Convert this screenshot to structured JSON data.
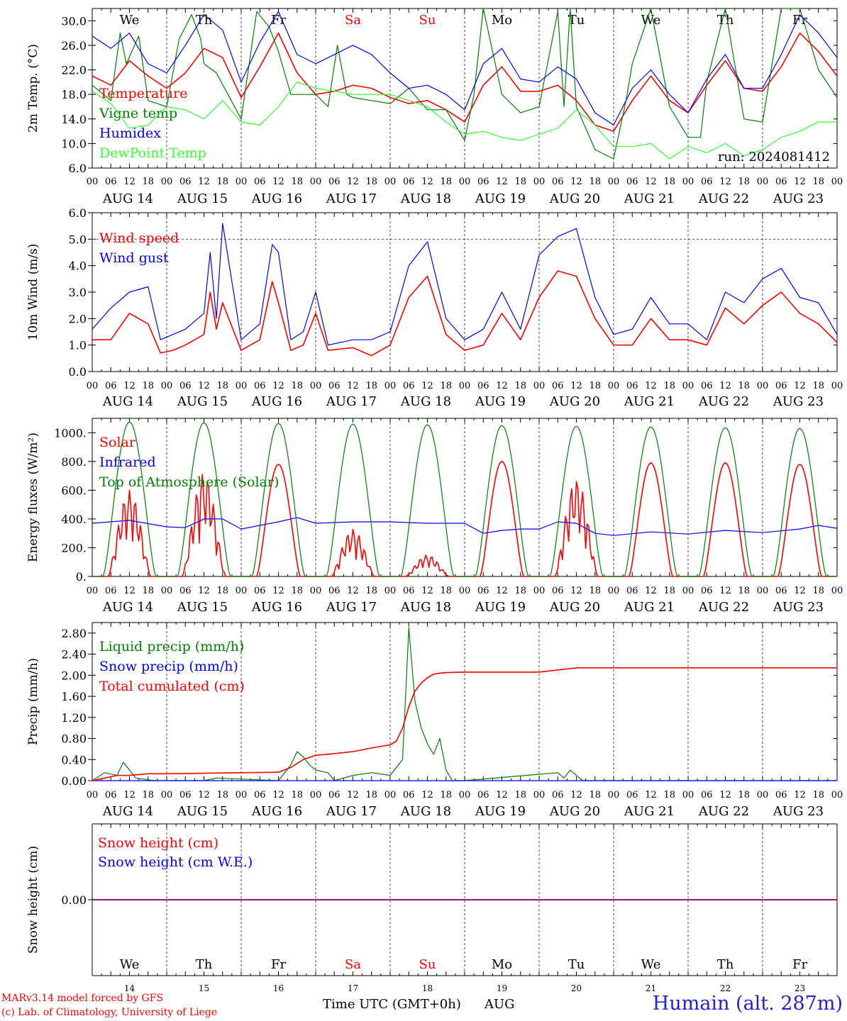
{
  "chart_data": [
    {
      "type": "line",
      "ylabel": "2m Temp. (°C)",
      "ylim": [
        6,
        32
      ],
      "yticks": [
        "6.0",
        "10.0",
        "14.0",
        "18.0",
        "22.0",
        "26.0",
        "30.0"
      ],
      "ytick_values": [
        6,
        10,
        14,
        18,
        22,
        26,
        30
      ],
      "x_ticks": [
        "00",
        "06",
        "12",
        "18"
      ],
      "dates": [
        "AUG 14",
        "AUG 15",
        "AUG 16",
        "AUG 17",
        "AUG 18",
        "AUG 19",
        "AUG 20",
        "AUG 21",
        "AUG 22",
        "AUG 23"
      ],
      "weekdays": [
        "We",
        "Th",
        "Fr",
        "Sa",
        "Su",
        "Mo",
        "Tu",
        "We",
        "Th",
        "Fr"
      ],
      "weekend_days": [
        3,
        4
      ],
      "annotation": "run: 2024081412",
      "series": [
        {
          "name": "Temperature",
          "color": "#ff0000",
          "x": [
            0,
            6,
            12,
            18,
            24,
            30,
            36,
            42,
            48,
            54,
            60,
            66,
            72,
            78,
            84,
            90,
            96,
            102,
            108,
            114,
            120,
            126,
            132,
            138,
            144,
            150,
            156,
            162,
            168,
            174,
            180,
            186,
            192,
            198,
            204,
            210,
            216,
            222,
            228,
            234,
            240
          ],
          "values": [
            21.0,
            19.5,
            23.5,
            21.0,
            19.0,
            21.5,
            25.5,
            24.0,
            17.5,
            22.5,
            28.0,
            21.5,
            18.0,
            18.5,
            19.5,
            19.0,
            17.5,
            16.5,
            17.0,
            15.5,
            13.5,
            19.5,
            22.5,
            18.5,
            18.5,
            19.5,
            17.0,
            13.0,
            12.0,
            17.0,
            21.0,
            17.0,
            15.0,
            19.5,
            23.5,
            19.0,
            18.5,
            22.5,
            28.0,
            25.0,
            21.0
          ]
        },
        {
          "name": "Vigne temp",
          "color": "#008000",
          "x": [
            0,
            6,
            9,
            11,
            15,
            18,
            24,
            28,
            32,
            35,
            36,
            40,
            48,
            53,
            57,
            60,
            64,
            72,
            76,
            79,
            82,
            84,
            90,
            96,
            102,
            108,
            114,
            120,
            123,
            126,
            132,
            138,
            144,
            150,
            152,
            154,
            156,
            162,
            168,
            172,
            174,
            180,
            186,
            192,
            196,
            198,
            204,
            210,
            216,
            222,
            228,
            234,
            240
          ],
          "values": [
            19.5,
            17.0,
            28.0,
            23.0,
            27.5,
            17.0,
            16.0,
            27.0,
            31.0,
            27.0,
            23.0,
            21.5,
            14.0,
            31.5,
            29.0,
            25.0,
            18.0,
            18.0,
            16.0,
            26.0,
            18.0,
            17.5,
            17.0,
            16.5,
            19.0,
            15.5,
            15.5,
            10.5,
            18.0,
            32.0,
            18.0,
            15.0,
            16.0,
            31.5,
            16.0,
            32.0,
            16.0,
            9.0,
            7.5,
            17.0,
            23.0,
            32.0,
            16.0,
            11.0,
            11.0,
            20.0,
            32.0,
            14.0,
            13.5,
            32.0,
            32.0,
            22.0,
            17.5
          ]
        },
        {
          "name": "Humidex",
          "color": "#0000ff",
          "x": [
            0,
            6,
            12,
            18,
            24,
            30,
            36,
            42,
            48,
            54,
            60,
            66,
            72,
            78,
            84,
            90,
            96,
            102,
            108,
            114,
            120,
            126,
            132,
            138,
            144,
            150,
            156,
            162,
            168,
            174,
            180,
            186,
            192,
            198,
            204,
            210,
            216,
            222,
            228,
            234,
            240
          ],
          "values": [
            27.5,
            25.5,
            28.0,
            23.0,
            21.5,
            26.0,
            31.0,
            28.5,
            20.0,
            26.5,
            31.5,
            24.5,
            23.0,
            24.5,
            26.0,
            24.5,
            21.5,
            19.0,
            19.5,
            18.0,
            15.5,
            23.0,
            25.5,
            20.5,
            20.0,
            22.5,
            20.5,
            15.0,
            13.0,
            19.0,
            22.0,
            18.0,
            15.0,
            20.5,
            24.5,
            19.0,
            19.0,
            24.5,
            31.0,
            28.0,
            24.0
          ]
        },
        {
          "name": "DewPoint Temp",
          "color": "#33ff33",
          "x": [
            0,
            6,
            12,
            18,
            24,
            30,
            36,
            42,
            48,
            54,
            60,
            66,
            72,
            78,
            84,
            90,
            96,
            102,
            108,
            114,
            120,
            126,
            132,
            138,
            144,
            150,
            156,
            162,
            168,
            174,
            180,
            186,
            192,
            198,
            204,
            210,
            216,
            222,
            228,
            234,
            240
          ],
          "values": [
            18.5,
            16.5,
            12.5,
            13.0,
            16.0,
            15.5,
            14.0,
            17.0,
            13.5,
            13.0,
            16.0,
            20.0,
            19.0,
            18.5,
            18.0,
            18.0,
            18.0,
            17.0,
            16.0,
            13.5,
            11.5,
            12.0,
            11.0,
            10.5,
            11.5,
            12.5,
            15.5,
            13.0,
            9.5,
            9.5,
            10.0,
            7.5,
            9.5,
            8.5,
            10.0,
            8.0,
            9.0,
            11.0,
            12.0,
            13.5,
            13.5
          ]
        }
      ]
    },
    {
      "type": "line",
      "ylabel": "10m Wind (m/s)",
      "ylim": [
        0,
        6
      ],
      "yticks": [
        "0.0",
        "1.0",
        "2.0",
        "3.0",
        "4.0",
        "5.0",
        "6.0"
      ],
      "ytick_values": [
        0,
        1,
        2,
        3,
        4,
        5,
        6
      ],
      "reference_line": 5.0,
      "x_ticks": [
        "00",
        "06",
        "12",
        "18"
      ],
      "dates": [
        "AUG 14",
        "AUG 15",
        "AUG 16",
        "AUG 17",
        "AUG 18",
        "AUG 19",
        "AUG 20",
        "AUG 21",
        "AUG 22",
        "AUG 23"
      ],
      "series": [
        {
          "name": "Wind speed",
          "color": "#ff0000",
          "x": [
            0,
            6,
            12,
            18,
            22,
            26,
            30,
            36,
            38,
            40,
            42,
            48,
            54,
            58,
            60,
            64,
            68,
            72,
            76,
            84,
            90,
            96,
            102,
            108,
            114,
            120,
            126,
            132,
            138,
            144,
            150,
            156,
            162,
            168,
            174,
            180,
            186,
            192,
            198,
            204,
            210,
            216,
            222,
            228,
            234,
            240
          ],
          "values": [
            1.2,
            1.2,
            2.2,
            1.8,
            0.7,
            0.8,
            1.0,
            1.4,
            3.0,
            1.6,
            2.6,
            0.8,
            1.2,
            3.4,
            2.6,
            0.8,
            1.0,
            2.2,
            0.8,
            0.9,
            0.6,
            1.0,
            2.8,
            3.6,
            1.4,
            0.8,
            1.0,
            2.2,
            1.2,
            2.8,
            3.8,
            3.6,
            2.0,
            1.0,
            1.0,
            2.0,
            1.2,
            1.2,
            1.0,
            2.4,
            1.8,
            2.5,
            3.0,
            2.2,
            1.8,
            1.1
          ]
        },
        {
          "name": "Wind gust",
          "color": "#0000ff",
          "x": [
            0,
            6,
            12,
            18,
            22,
            26,
            30,
            36,
            38,
            40,
            42,
            48,
            54,
            58,
            60,
            64,
            68,
            72,
            76,
            84,
            90,
            96,
            102,
            108,
            114,
            120,
            126,
            132,
            138,
            144,
            150,
            156,
            162,
            168,
            174,
            180,
            186,
            192,
            198,
            204,
            210,
            216,
            222,
            228,
            234,
            240
          ],
          "values": [
            1.6,
            2.4,
            3.0,
            3.2,
            1.2,
            1.4,
            1.6,
            2.2,
            4.5,
            2.0,
            5.6,
            1.2,
            1.8,
            4.8,
            4.5,
            1.2,
            1.5,
            3.0,
            1.0,
            1.2,
            1.2,
            1.5,
            4.0,
            4.9,
            2.0,
            1.2,
            1.6,
            3.0,
            1.6,
            4.4,
            5.1,
            5.4,
            2.8,
            1.4,
            1.6,
            2.8,
            1.8,
            1.8,
            1.2,
            3.0,
            2.6,
            3.5,
            3.9,
            2.8,
            2.6,
            1.4
          ]
        }
      ]
    },
    {
      "type": "line",
      "ylabel": "Energy fluxes (W/m²)",
      "ylim": [
        0,
        1100
      ],
      "yticks": [
        "0.",
        "200.",
        "400.",
        "600.",
        "800.",
        "1000."
      ],
      "ytick_values": [
        0,
        200,
        400,
        600,
        800,
        1000
      ],
      "x_ticks": [
        "00",
        "06",
        "12",
        "18"
      ],
      "dates": [
        "AUG 14",
        "AUG 15",
        "AUG 16",
        "AUG 17",
        "AUG 18",
        "AUG 19",
        "AUG 20",
        "AUG 21",
        "AUG 22",
        "AUG 23"
      ],
      "series": [
        {
          "name": "Solar",
          "color": "#ff0000",
          "day_peaks": [
            600,
            720,
            780,
            330,
            150,
            800,
            680,
            790,
            790,
            780
          ],
          "x": [
            0,
            24,
            48,
            72,
            96,
            120,
            144,
            168,
            192,
            216,
            240
          ],
          "values": [
            0,
            0,
            0,
            0,
            0,
            0,
            0,
            0,
            0,
            0,
            0
          ]
        },
        {
          "name": "Infrared",
          "color": "#0000ff",
          "x": [
            0,
            12,
            24,
            30,
            36,
            42,
            48,
            60,
            66,
            72,
            84,
            96,
            108,
            120,
            126,
            132,
            138,
            144,
            150,
            156,
            162,
            168,
            180,
            192,
            204,
            216,
            228,
            234,
            240
          ],
          "values": [
            370,
            390,
            345,
            340,
            400,
            400,
            330,
            380,
            410,
            370,
            380,
            380,
            370,
            370,
            300,
            320,
            330,
            330,
            380,
            370,
            300,
            285,
            310,
            295,
            320,
            305,
            330,
            355,
            335
          ]
        },
        {
          "name": "Top of Atmosphere (Solar)",
          "color": "#008000",
          "day_peaks": [
            1075,
            1070,
            1065,
            1060,
            1055,
            1050,
            1045,
            1040,
            1035,
            1030
          ],
          "x": [
            0,
            24,
            48,
            72,
            96,
            120,
            144,
            168,
            192,
            216,
            240
          ],
          "values": [
            0,
            0,
            0,
            0,
            0,
            0,
            0,
            0,
            0,
            0,
            0
          ]
        }
      ]
    },
    {
      "type": "line",
      "ylabel": "Precip (mm/h)",
      "ylim": [
        0,
        3.0
      ],
      "yticks": [
        "0.00",
        "0.40",
        "0.80",
        "1.20",
        "1.60",
        "2.00",
        "2.40",
        "2.80"
      ],
      "ytick_values": [
        0,
        0.4,
        0.8,
        1.2,
        1.6,
        2.0,
        2.4,
        2.8
      ],
      "x_ticks": [
        "00",
        "06",
        "12",
        "18"
      ],
      "dates": [
        "AUG 14",
        "AUG 15",
        "AUG 16",
        "AUG 17",
        "AUG 18",
        "AUG 19",
        "AUG 20",
        "AUG 21",
        "AUG 22",
        "AUG 23"
      ],
      "series": [
        {
          "name": "Liquid precip (mm/h)",
          "color": "#008000",
          "x": [
            0,
            4,
            8,
            10,
            14,
            20,
            36,
            40,
            60,
            64,
            66,
            68,
            70,
            72,
            76,
            78,
            84,
            90,
            96,
            100,
            102,
            104,
            106,
            108,
            110,
            112,
            114,
            116,
            120,
            150,
            152,
            154,
            156,
            158,
            160,
            240
          ],
          "values": [
            0,
            0.15,
            0.1,
            0.35,
            0.05,
            0,
            0,
            0.05,
            0,
            0.3,
            0.55,
            0.45,
            0.3,
            0.2,
            0.15,
            0,
            0.1,
            0.15,
            0.1,
            0.4,
            2.9,
            1.5,
            1.0,
            0.7,
            0.5,
            0.8,
            0.2,
            0,
            0,
            0.15,
            0.05,
            0.2,
            0.1,
            0,
            0,
            0
          ]
        },
        {
          "name": "Snow precip (mm/h)",
          "color": "#0000ff",
          "x": [
            0,
            240
          ],
          "values": [
            0,
            0
          ]
        },
        {
          "name": "Total cumulated (cm)",
          "color": "#ff0000",
          "x": [
            0,
            4,
            8,
            12,
            18,
            24,
            36,
            48,
            60,
            64,
            68,
            72,
            76,
            84,
            90,
            96,
            98,
            100,
            102,
            104,
            106,
            108,
            110,
            112,
            114,
            120,
            144,
            150,
            156,
            168,
            240
          ],
          "values": [
            0,
            0.05,
            0.1,
            0.1,
            0.13,
            0.13,
            0.14,
            0.15,
            0.16,
            0.25,
            0.4,
            0.48,
            0.5,
            0.55,
            0.62,
            0.68,
            0.75,
            1.0,
            1.4,
            1.7,
            1.85,
            1.95,
            2.02,
            2.04,
            2.05,
            2.06,
            2.06,
            2.1,
            2.14,
            2.14,
            2.14
          ]
        }
      ]
    },
    {
      "type": "line",
      "ylabel": "Snow height (cm)",
      "ylim": [
        -1,
        1
      ],
      "yticks": [
        "0.00"
      ],
      "ytick_values": [
        0
      ],
      "day_numbers": [
        "14",
        "15",
        "16",
        "17",
        "18",
        "19",
        "20",
        "21",
        "22",
        "23"
      ],
      "weekdays": [
        "We",
        "Th",
        "Fr",
        "Sa",
        "Su",
        "Mo",
        "Tu",
        "We",
        "Th",
        "Fr"
      ],
      "weekend_days": [
        3,
        4
      ],
      "series": [
        {
          "name": "Snow height (cm)",
          "color": "#ff0000",
          "x": [
            0,
            240
          ],
          "values": [
            0,
            0
          ]
        },
        {
          "name": "Snow height (cm W.E.)",
          "color": "#0000ff",
          "x": [
            0,
            240
          ],
          "values": [
            0,
            0
          ]
        }
      ]
    }
  ],
  "footer": {
    "credit_line1": "MARv3.14 model forced by GFS",
    "credit_line2": "(c) Lab. of Climatology, University of Liege",
    "time_label": "Time UTC (GMT+0h)",
    "month_label": "AUG",
    "station": "Humain (alt. 287m)"
  }
}
